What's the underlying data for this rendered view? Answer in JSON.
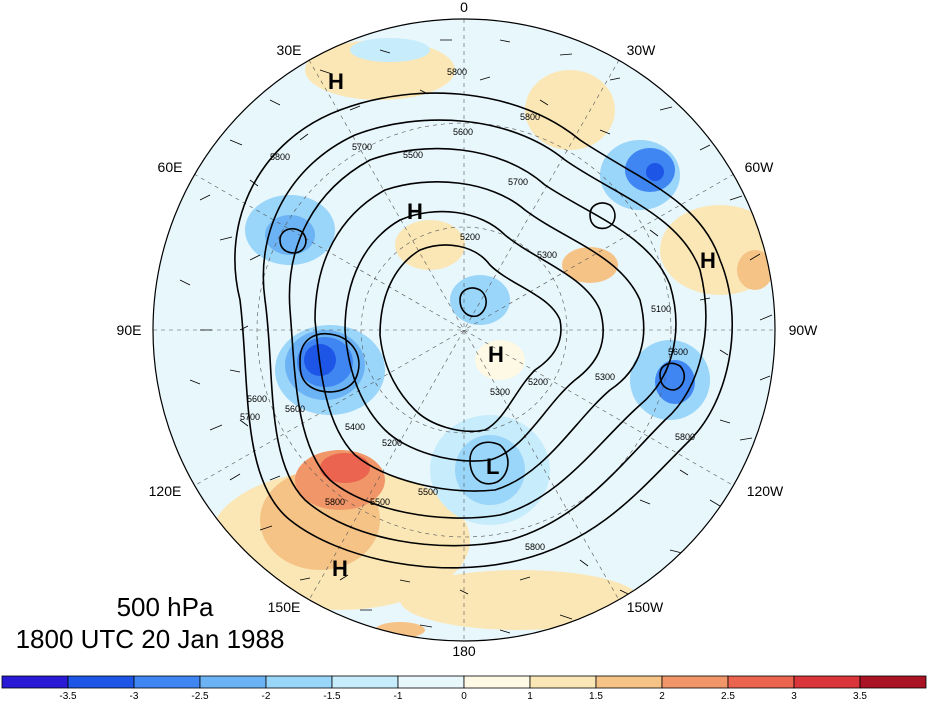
{
  "map": {
    "longitude_labels": {
      "top": "0",
      "top_left": "30E",
      "top_right": "30W",
      "upper_left": "60E",
      "upper_right": "60W",
      "left": "90E",
      "right": "90W",
      "lower_left": "120E",
      "lower_right": "120W",
      "bottom_left": "150E",
      "bottom_right": "150W",
      "bottom": "180"
    },
    "pressure_markers": [
      {
        "type": "H"
      },
      {
        "type": "H"
      },
      {
        "type": "H"
      },
      {
        "type": "H"
      },
      {
        "type": "H"
      },
      {
        "type": "L"
      }
    ],
    "contour_labels": [
      "5800",
      "5700",
      "5600",
      "5500",
      "5300",
      "5200",
      "5100",
      "5800",
      "5800",
      "5800",
      "5600",
      "5400",
      "5500",
      "5200",
      "5800",
      "5600",
      "5700",
      "5800",
      "5300",
      "5500",
      "5600",
      "5700",
      "5200",
      "5300"
    ]
  },
  "caption": {
    "level": "500 hPa",
    "time": "1800 UTC 20 Jan 1988"
  },
  "colorbar": {
    "colors": [
      "#2a1ad6",
      "#1d56e6",
      "#3f86f2",
      "#6cb3f5",
      "#9ad5fa",
      "#c7ecfb",
      "#e8f7fc",
      "#fdf9e4",
      "#fbe7b6",
      "#f6c387",
      "#f19668",
      "#ea6450",
      "#d9353a",
      "#aa1323"
    ],
    "tick_labels": [
      "-3.5",
      "-3",
      "-2.5",
      "-2",
      "-1.5",
      "-1",
      "0",
      "1",
      "1.5",
      "2",
      "2.5",
      "3",
      "3.5"
    ]
  }
}
